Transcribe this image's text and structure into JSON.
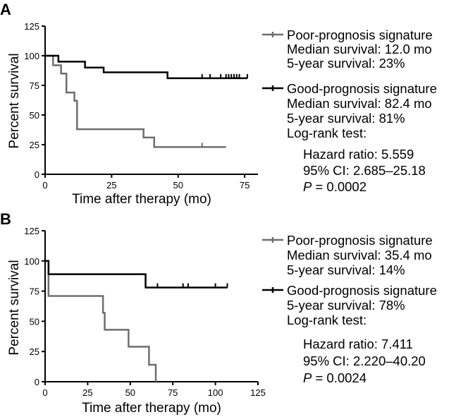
{
  "colors": {
    "poor": "#6e6e6e",
    "good": "#000000"
  },
  "chart_data": [
    {
      "type": "line",
      "panel": "A",
      "xlabel": "Time after therapy (mo)",
      "ylabel": "Percent survival",
      "xlim": [
        0,
        80
      ],
      "ylim": [
        0,
        125
      ],
      "xticks": [
        "0",
        "25",
        "50",
        "75"
      ],
      "yticks": [
        "0",
        "25",
        "50",
        "75",
        "100",
        "125"
      ],
      "series": [
        {
          "name": "Poor-prognosis signature",
          "color_key": "poor",
          "steps": [
            [
              0,
              100
            ],
            [
              3,
              92
            ],
            [
              6,
              85
            ],
            [
              8,
              69
            ],
            [
              11,
              62
            ],
            [
              12,
              38
            ],
            [
              37,
              31
            ],
            [
              41,
              23
            ],
            [
              68,
              23
            ]
          ],
          "censors": [
            [
              59,
              23
            ]
          ]
        },
        {
          "name": "Good-prognosis signature",
          "color_key": "good",
          "steps": [
            [
              0,
              100
            ],
            [
              5,
              95
            ],
            [
              15,
              90
            ],
            [
              22,
              86
            ],
            [
              46,
              81
            ],
            [
              76,
              81
            ]
          ],
          "censors": [
            [
              59,
              81
            ],
            [
              62,
              81
            ],
            [
              66,
              81
            ],
            [
              68,
              81
            ],
            [
              69,
              81
            ],
            [
              70,
              81
            ],
            [
              71,
              81
            ],
            [
              72,
              81
            ],
            [
              73,
              81
            ],
            [
              76,
              81
            ]
          ]
        }
      ],
      "legend": [
        {
          "marker_key": "poor",
          "lines": [
            "Poor-prognosis signature",
            "Median survival: 12.0 mo",
            "5-year survival: 23%"
          ]
        },
        {
          "marker_key": "good",
          "lines": [
            "Good-prognosis signature",
            "Median survival: 82.4 mo",
            "5-year survival: 81%",
            "Log-rank test:"
          ]
        }
      ],
      "stats": {
        "hazard": "Hazard ratio: 5.559",
        "ci": "95% CI: 2.685–25.18",
        "p_label": "P",
        "p_value": " = 0.0002"
      }
    },
    {
      "type": "line",
      "panel": "B",
      "xlabel": "Time after therapy (mo)",
      "ylabel": "Percent survival",
      "xlim": [
        0,
        125
      ],
      "ylim": [
        0,
        125
      ],
      "xticks": [
        "0",
        "25",
        "50",
        "75",
        "100",
        "125"
      ],
      "yticks": [
        "0",
        "25",
        "50",
        "75",
        "100",
        "125"
      ],
      "series": [
        {
          "name": "Poor-prognosis signature",
          "color_key": "poor",
          "steps": [
            [
              0,
              100
            ],
            [
              2,
              71
            ],
            [
              34,
              57
            ],
            [
              35,
              43
            ],
            [
              49,
              29
            ],
            [
              61,
              14
            ],
            [
              65,
              0
            ]
          ],
          "censors": []
        },
        {
          "name": "Good-prognosis signature",
          "color_key": "good",
          "steps": [
            [
              0,
              100
            ],
            [
              2,
              89
            ],
            [
              59,
              78
            ],
            [
              107,
              78
            ]
          ],
          "censors": [
            [
              66,
              78
            ],
            [
              81,
              78
            ],
            [
              84,
              78
            ],
            [
              100,
              78
            ],
            [
              107,
              78
            ]
          ]
        }
      ],
      "legend": [
        {
          "marker_key": "poor",
          "lines": [
            "Poor-prognosis signature",
            "Median survival: 35.4 mo",
            "5-year survival: 14%"
          ]
        },
        {
          "marker_key": "good",
          "lines": [
            "Good-prognosis signature",
            "5-year survival: 78%",
            "Log-rank test:"
          ]
        }
      ],
      "stats": {
        "hazard": "Hazard ratio: 7.411",
        "ci": "95% CI: 2.220–40.20",
        "p_label": "P",
        "p_value": " = 0.0024"
      }
    }
  ]
}
